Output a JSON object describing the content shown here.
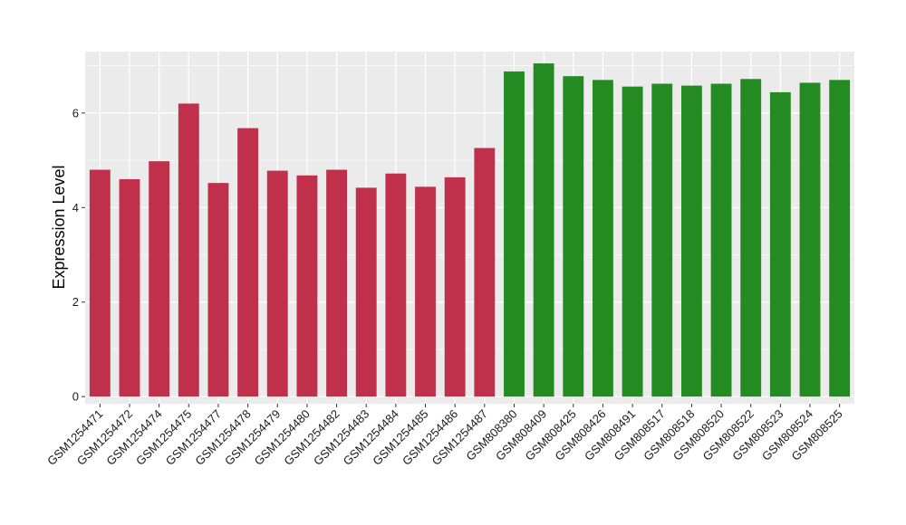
{
  "chart_data": {
    "type": "bar",
    "title": "",
    "xlabel": "",
    "ylabel": "Expression Level",
    "ylim": [
      -0.15,
      7.3
    ],
    "yticks": [
      0,
      2,
      4,
      6
    ],
    "grid": true,
    "legend": "none",
    "categories": [
      "GSM1254471",
      "GSM1254472",
      "GSM1254474",
      "GSM1254475",
      "GSM1254477",
      "GSM1254478",
      "GSM1254479",
      "GSM1254480",
      "GSM1254482",
      "GSM1254483",
      "GSM1254484",
      "GSM1254485",
      "GSM1254486",
      "GSM1254487",
      "GSM808380",
      "GSM808409",
      "GSM808425",
      "GSM808426",
      "GSM808491",
      "GSM808517",
      "GSM808518",
      "GSM808520",
      "GSM808522",
      "GSM808523",
      "GSM808524",
      "GSM808525"
    ],
    "values": [
      4.8,
      4.6,
      4.98,
      6.2,
      4.52,
      5.68,
      4.78,
      4.68,
      4.8,
      4.42,
      4.72,
      4.44,
      4.64,
      5.26,
      6.88,
      7.05,
      6.78,
      6.7,
      6.56,
      6.62,
      6.58,
      6.62,
      6.72,
      6.44,
      6.64,
      6.7
    ],
    "bar_colors": [
      "#c0304a",
      "#c0304a",
      "#c0304a",
      "#c0304a",
      "#c0304a",
      "#c0304a",
      "#c0304a",
      "#c0304a",
      "#c0304a",
      "#c0304a",
      "#c0304a",
      "#c0304a",
      "#c0304a",
      "#c0304a",
      "#238b22",
      "#238b22",
      "#238b22",
      "#238b22",
      "#238b22",
      "#238b22",
      "#238b22",
      "#238b22",
      "#238b22",
      "#238b22",
      "#238b22",
      "#238b22"
    ],
    "panel_background": "#ebebeb",
    "grid_color": "#ffffff"
  }
}
